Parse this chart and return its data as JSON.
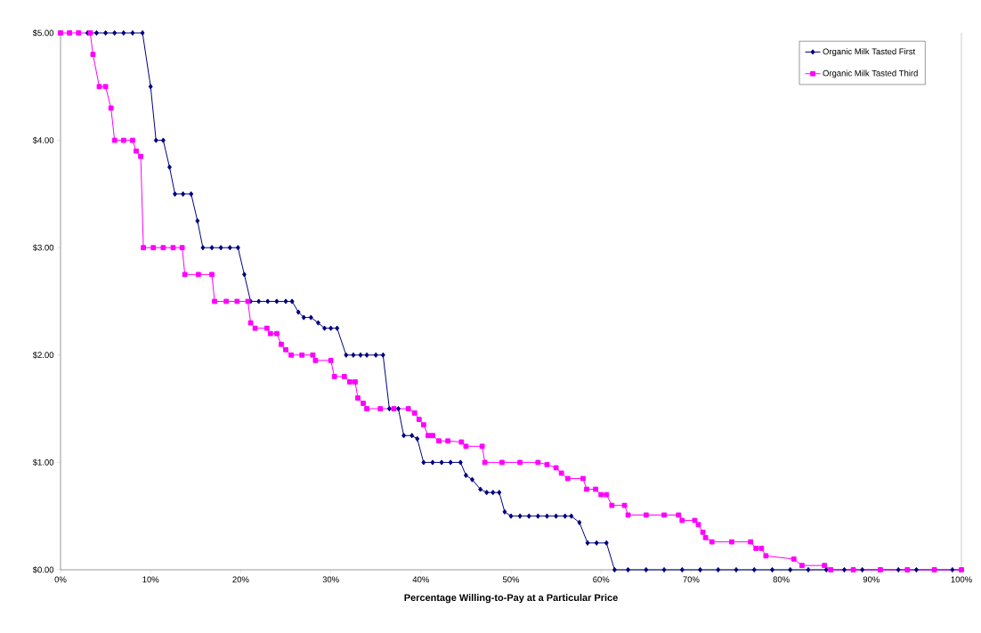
{
  "chart_data": {
    "type": "line",
    "xlabel": "Percentage Willing-to-Pay at a Particular Price",
    "xlim": [
      0,
      100
    ],
    "xticks": [
      {
        "value": 0,
        "label": "0%"
      },
      {
        "value": 10,
        "label": "10%"
      },
      {
        "value": 20,
        "label": "20%"
      },
      {
        "value": 30,
        "label": "30%"
      },
      {
        "value": 40,
        "label": "40%"
      },
      {
        "value": 50,
        "label": "50%"
      },
      {
        "value": 60,
        "label": "60%"
      },
      {
        "value": 70,
        "label": "70%"
      },
      {
        "value": 80,
        "label": "80%"
      },
      {
        "value": 90,
        "label": "90%"
      },
      {
        "value": 100,
        "label": "100%"
      }
    ],
    "ylim": [
      0,
      5
    ],
    "yticks": [
      {
        "value": 0,
        "label": "$0.00"
      },
      {
        "value": 1,
        "label": "$1.00"
      },
      {
        "value": 2,
        "label": "$2.00"
      },
      {
        "value": 3,
        "label": "$3.00"
      },
      {
        "value": 4,
        "label": "$4.00"
      },
      {
        "value": 5,
        "label": "$5.00"
      }
    ],
    "legend": "top right",
    "grid": false,
    "series": [
      {
        "name": "Organic Milk Tasted First",
        "color": "#000080",
        "marker": "diamond",
        "x": [
          3,
          4,
          5,
          6,
          7,
          8,
          9.1,
          10.0,
          10.6,
          11.4,
          12.1,
          12.7,
          13.6,
          14.5,
          15.2,
          15.8,
          16.8,
          17.8,
          18.8,
          19.7,
          20.4,
          21.1,
          22.0,
          23.0,
          24.0,
          25.0,
          25.7,
          26.4,
          27.0,
          27.8,
          28.6,
          29.3,
          30.0,
          30.7,
          31.7,
          32.5,
          33.3,
          34.0,
          35.0,
          35.8,
          36.5,
          37.5,
          38.1,
          39.0,
          39.6,
          40.3,
          41.3,
          42.3,
          43.3,
          44.4,
          45.0,
          45.7,
          46.6,
          47.3,
          48.0,
          48.7,
          49.3,
          50.0,
          51.0,
          52.0,
          53.0,
          54.0,
          55.0,
          56.0,
          56.7,
          57.6,
          58.5,
          59.5,
          60.6,
          61.5,
          63,
          65,
          67,
          69,
          71,
          73,
          75,
          77,
          79,
          81,
          83,
          85,
          87,
          89,
          91,
          93,
          95,
          97,
          99,
          100
        ],
        "values": [
          5,
          5,
          5,
          5,
          5,
          5,
          5,
          4.5,
          4.0,
          4.0,
          3.75,
          3.5,
          3.5,
          3.5,
          3.25,
          3.0,
          3.0,
          3.0,
          3.0,
          3.0,
          2.75,
          2.5,
          2.5,
          2.5,
          2.5,
          2.5,
          2.5,
          2.4,
          2.35,
          2.35,
          2.3,
          2.25,
          2.25,
          2.25,
          2.0,
          2.0,
          2.0,
          2.0,
          2.0,
          2.0,
          1.5,
          1.5,
          1.25,
          1.25,
          1.22,
          1.0,
          1.0,
          1.0,
          1.0,
          1.0,
          0.88,
          0.84,
          0.75,
          0.72,
          0.72,
          0.72,
          0.54,
          0.5,
          0.5,
          0.5,
          0.5,
          0.5,
          0.5,
          0.5,
          0.5,
          0.44,
          0.25,
          0.25,
          0.25,
          0,
          0,
          0,
          0,
          0,
          0,
          0,
          0,
          0,
          0,
          0,
          0,
          0,
          0,
          0,
          0,
          0,
          0,
          0,
          0,
          0
        ]
      },
      {
        "name": "Organic Milk Tasted Third",
        "color": "#ff00ff",
        "marker": "square",
        "x": [
          0,
          1,
          2,
          3.3,
          3.6,
          4.3,
          5.0,
          5.6,
          6.0,
          7.0,
          8.0,
          8.4,
          8.9,
          9.2,
          10.3,
          11.4,
          12.5,
          13.5,
          13.8,
          15.3,
          16.8,
          17.1,
          18.4,
          19.6,
          20.8,
          21.1,
          21.6,
          22.9,
          23.3,
          24.0,
          24.5,
          25.0,
          25.6,
          26.8,
          28.0,
          28.3,
          30.0,
          30.4,
          31.5,
          32.1,
          32.7,
          33.0,
          33.6,
          34.0,
          35.5,
          37.0,
          38.6,
          39.3,
          39.8,
          40.3,
          40.8,
          41.3,
          42.0,
          43.0,
          44.5,
          45.0,
          46.8,
          47.1,
          49.0,
          51.0,
          53.0,
          54.0,
          55.0,
          55.6,
          56.3,
          58.0,
          58.4,
          59.4,
          60.0,
          60.6,
          61.2,
          62.6,
          63.0,
          65.0,
          67.0,
          68.6,
          69.0,
          70.4,
          70.8,
          71.3,
          71.6,
          72.3,
          74.5,
          76.6,
          77.2,
          77.8,
          78.3,
          81.4,
          82.3,
          84.8,
          85.5,
          88,
          91,
          94,
          97,
          100
        ],
        "values": [
          5,
          5,
          5,
          5,
          4.8,
          4.5,
          4.5,
          4.3,
          4.0,
          4.0,
          4.0,
          3.9,
          3.85,
          3.0,
          3.0,
          3.0,
          3.0,
          3.0,
          2.75,
          2.75,
          2.75,
          2.5,
          2.5,
          2.5,
          2.5,
          2.3,
          2.25,
          2.25,
          2.2,
          2.2,
          2.1,
          2.05,
          2.0,
          2.0,
          2.0,
          1.95,
          1.95,
          1.8,
          1.8,
          1.75,
          1.75,
          1.6,
          1.55,
          1.5,
          1.5,
          1.5,
          1.5,
          1.46,
          1.4,
          1.35,
          1.25,
          1.25,
          1.2,
          1.2,
          1.19,
          1.15,
          1.15,
          1.0,
          1.0,
          1.0,
          1.0,
          0.98,
          0.95,
          0.9,
          0.85,
          0.85,
          0.75,
          0.75,
          0.7,
          0.7,
          0.6,
          0.6,
          0.51,
          0.51,
          0.51,
          0.51,
          0.46,
          0.46,
          0.42,
          0.35,
          0.3,
          0.26,
          0.26,
          0.26,
          0.2,
          0.2,
          0.13,
          0.1,
          0.04,
          0.04,
          0,
          0,
          0,
          0,
          0,
          0
        ]
      }
    ]
  }
}
